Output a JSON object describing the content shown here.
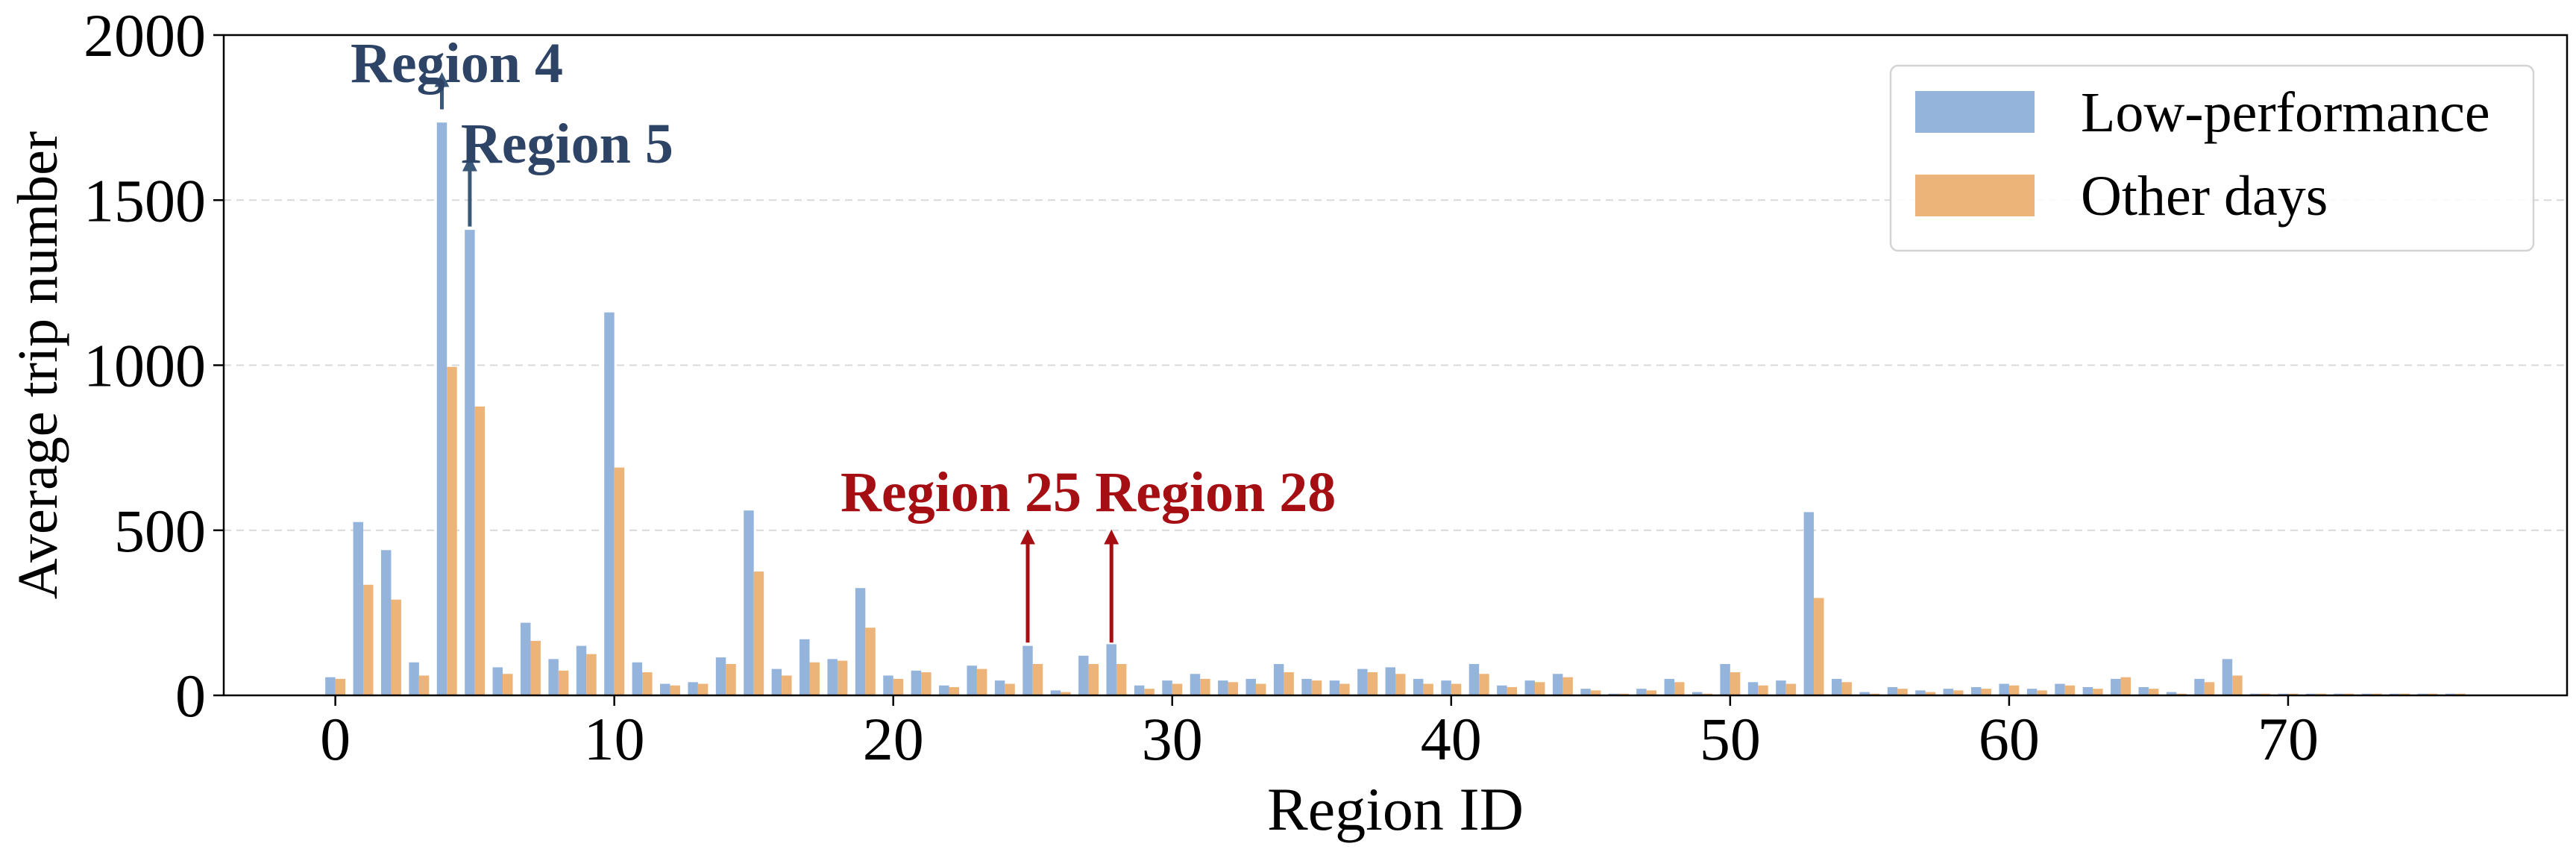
{
  "chart_data": {
    "type": "bar",
    "title": "",
    "xlabel": "Region ID",
    "ylabel": "Average trip number",
    "xlim": [
      -4,
      80
    ],
    "ylim": [
      0,
      2000
    ],
    "xticks": [
      0,
      10,
      20,
      30,
      40,
      50,
      60,
      70
    ],
    "yticks": [
      0,
      500,
      1000,
      1500,
      2000
    ],
    "grid": "y-dashed",
    "legend_position": "top-right",
    "x": [
      0,
      1,
      2,
      3,
      4,
      5,
      6,
      7,
      8,
      9,
      10,
      11,
      12,
      13,
      14,
      15,
      16,
      17,
      18,
      19,
      20,
      21,
      22,
      23,
      24,
      25,
      26,
      27,
      28,
      29,
      30,
      31,
      32,
      33,
      34,
      35,
      36,
      37,
      38,
      39,
      40,
      41,
      42,
      43,
      44,
      45,
      46,
      47,
      48,
      49,
      50,
      51,
      52,
      53,
      54,
      55,
      56,
      57,
      58,
      59,
      60,
      61,
      62,
      63,
      64,
      65,
      66,
      67,
      68,
      69,
      70,
      71,
      72,
      73,
      74,
      75,
      76,
      77
    ],
    "series": [
      {
        "name": "Low-performance",
        "color": "#95b4dc",
        "values": [
          55,
          525,
          440,
          100,
          1735,
          1410,
          85,
          220,
          110,
          150,
          1160,
          100,
          35,
          40,
          115,
          560,
          80,
          170,
          110,
          325,
          60,
          75,
          30,
          90,
          45,
          150,
          15,
          120,
          155,
          30,
          45,
          65,
          45,
          50,
          95,
          50,
          45,
          80,
          85,
          50,
          45,
          95,
          30,
          45,
          65,
          20,
          5,
          20,
          50,
          10,
          95,
          40,
          45,
          555,
          50,
          10,
          25,
          15,
          20,
          25,
          35,
          20,
          35,
          25,
          50,
          25,
          10,
          50,
          110,
          5,
          5,
          5,
          5,
          5,
          5,
          5,
          5,
          0
        ]
      },
      {
        "name": "Other days",
        "color": "#ecb479",
        "values": [
          50,
          335,
          290,
          60,
          995,
          875,
          65,
          165,
          75,
          125,
          690,
          70,
          30,
          35,
          95,
          375,
          60,
          100,
          105,
          205,
          50,
          70,
          25,
          80,
          35,
          95,
          10,
          95,
          95,
          20,
          35,
          50,
          40,
          35,
          70,
          45,
          35,
          70,
          65,
          35,
          35,
          65,
          25,
          40,
          55,
          15,
          5,
          15,
          40,
          5,
          70,
          30,
          35,
          295,
          40,
          5,
          20,
          10,
          15,
          20,
          30,
          15,
          30,
          20,
          55,
          20,
          5,
          40,
          60,
          5,
          5,
          5,
          5,
          5,
          5,
          5,
          5,
          0
        ]
      }
    ],
    "annotations": [
      {
        "text": "Region 4",
        "x": 4,
        "y": 1735,
        "color": "#2e4467"
      },
      {
        "text": "Region 5",
        "x": 5,
        "y": 1410,
        "color": "#2e4467"
      },
      {
        "text": "Region 25",
        "x": 25,
        "y": 150,
        "color": "#a50f14"
      },
      {
        "text": "Region 28",
        "x": 28,
        "y": 155,
        "color": "#a50f14"
      }
    ]
  }
}
